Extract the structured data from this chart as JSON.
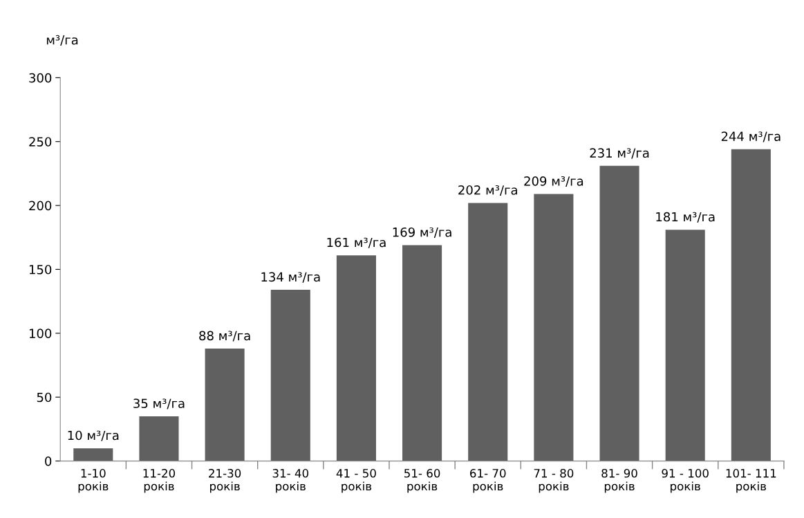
{
  "chart_data": {
    "type": "bar",
    "ylabel": "м³/га",
    "categories": [
      "1-10\nроків",
      "11-20\nроків",
      "21-30\nроків",
      "31- 40\nроків",
      "41 - 50\nроків",
      "51- 60\nроків",
      "61- 70\nроків",
      "71 - 80\nроків",
      "81- 90\nроків",
      "91 - 100\nроків",
      "101- 111\nроків"
    ],
    "values": [
      10,
      35,
      88,
      134,
      161,
      169,
      202,
      209,
      231,
      181,
      244
    ],
    "value_labels": [
      "10 м³/га",
      "35 м³/га",
      "88 м³/га",
      "134 м³/га",
      "161 м³/га",
      "169 м³/га",
      "202 м³/га",
      "209 м³/га",
      "231 м³/га",
      "181 м³/га",
      "244 м³/га"
    ],
    "color": "#606060",
    "ylim": [
      0,
      300
    ],
    "yticks": [
      0,
      50,
      100,
      150,
      200,
      250,
      300
    ],
    "grid": false,
    "legend": false
  }
}
